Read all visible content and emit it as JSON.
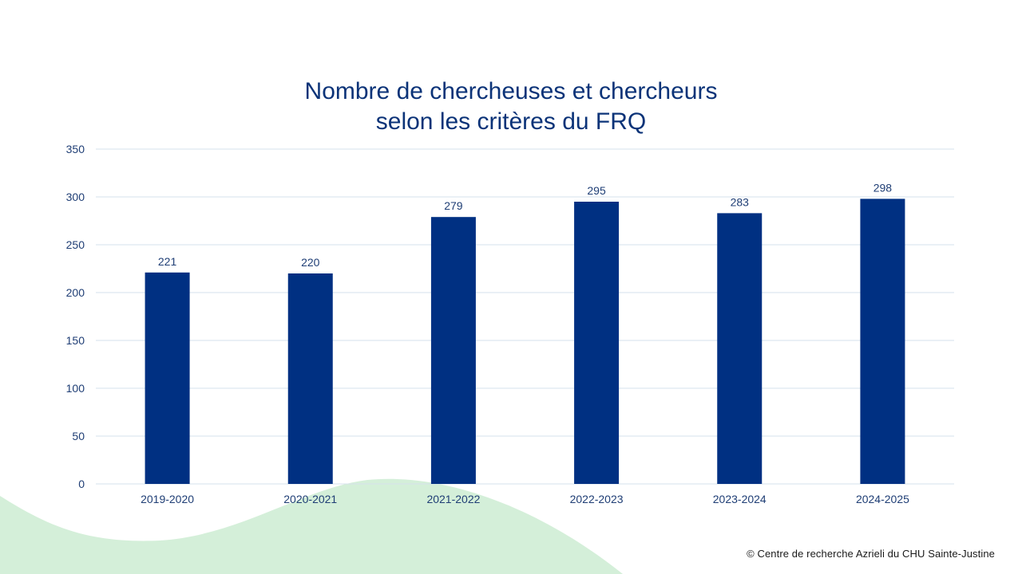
{
  "slide": {
    "title_line1": "Nombre de chercheuses et chercheurs",
    "title_line2": "selon les critères du FRQ",
    "copyright": "© Centre de recherche Azrieli du CHU Sainte-Justine",
    "colors": {
      "bar": "#003082",
      "title": "#0b3378",
      "axis_text": "#1f3e75",
      "gridline": "#d6e1ec",
      "wave": "#d4efd9"
    }
  },
  "chart_data": {
    "type": "bar",
    "title": "Nombre de chercheuses et chercheurs selon les critères du FRQ",
    "categories": [
      "2019-2020",
      "2020-2021",
      "2021-2022",
      "2022-2023",
      "2023-2024",
      "2024-2025"
    ],
    "values": [
      221,
      220,
      279,
      295,
      283,
      298
    ],
    "xlabel": "",
    "ylabel": "",
    "ylim": [
      0,
      350
    ],
    "yticks": [
      0,
      50,
      100,
      150,
      200,
      250,
      300,
      350
    ],
    "grid": true,
    "legend": "none",
    "data_labels": true
  }
}
